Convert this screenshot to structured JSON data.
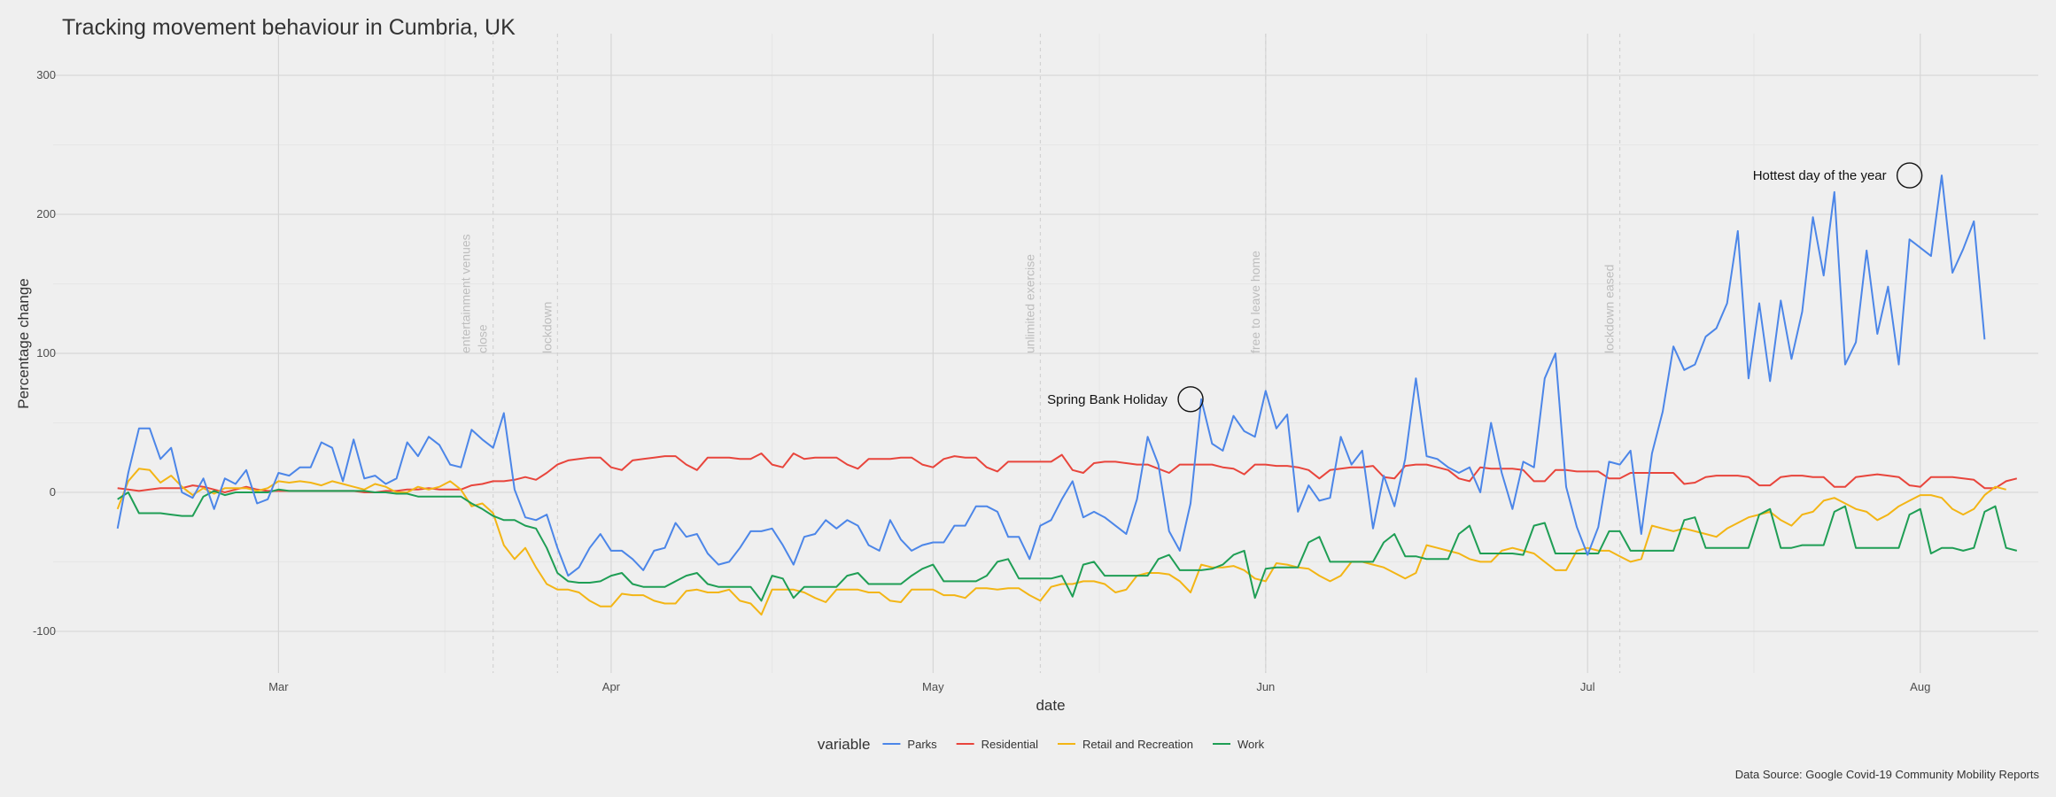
{
  "chart_data": {
    "type": "line",
    "title": "Tracking movement behaviour in Cumbria, UK",
    "xlabel": "date",
    "ylabel": "Percentage change",
    "caption": "Data Source: Google Covid-19 Community Mobility Reports",
    "legend_title": "variable",
    "legend_position": "bottom",
    "grid": true,
    "x_range": [
      "2020-02-09",
      "2020-08-12"
    ],
    "ylim": [
      -130,
      330
    ],
    "x_ticks": [
      {
        "date": "2020-03-01",
        "label": "Mar"
      },
      {
        "date": "2020-04-01",
        "label": "Apr"
      },
      {
        "date": "2020-05-01",
        "label": "May"
      },
      {
        "date": "2020-06-01",
        "label": "Jun"
      },
      {
        "date": "2020-07-01",
        "label": "Jul"
      },
      {
        "date": "2020-08-01",
        "label": "Aug"
      }
    ],
    "y_ticks": [
      -100,
      0,
      100,
      200,
      300
    ],
    "events": [
      {
        "date": "2020-03-21",
        "label": "entertainment venues close"
      },
      {
        "date": "2020-03-27",
        "label": "lockdown"
      },
      {
        "date": "2020-05-11",
        "label": "unlimited exercise"
      },
      {
        "date": "2020-06-01",
        "label": "free to leave home"
      },
      {
        "date": "2020-07-04",
        "label": "lockdown eased"
      }
    ],
    "annotations": [
      {
        "date": "2020-05-25",
        "value": 67,
        "label": "Spring Bank Holiday"
      },
      {
        "date": "2020-07-31",
        "value": 228,
        "label": "Hottest day of the year"
      }
    ],
    "series": [
      {
        "name": "Parks",
        "color": "#4c86e8",
        "start_date": "2020-02-15",
        "values": [
          -26,
          14,
          46,
          46,
          24,
          32,
          0,
          -4,
          10,
          -12,
          10,
          6,
          16,
          -8,
          -5,
          14,
          12,
          18,
          18,
          36,
          32,
          8,
          38,
          10,
          12,
          6,
          10,
          36,
          26,
          40,
          34,
          20,
          18,
          45,
          38,
          32,
          57,
          2,
          -18,
          -20,
          -16,
          -40,
          -60,
          -54,
          -40,
          -30,
          -42,
          -42,
          -48,
          -56,
          -42,
          -40,
          -22,
          -32,
          -30,
          -44,
          -52,
          -50,
          -40,
          -28,
          -28,
          -26,
          -38,
          -52,
          -32,
          -30,
          -20,
          -26,
          -20,
          -24,
          -38,
          -42,
          -20,
          -34,
          -42,
          -38,
          -36,
          -36,
          -24,
          -24,
          -10,
          -10,
          -14,
          -32,
          -32,
          -48,
          -24,
          -20,
          -5,
          8,
          -18,
          -14,
          -18,
          -24,
          -30,
          -5,
          40,
          20,
          -28,
          -42,
          -8,
          67,
          35,
          30,
          55,
          44,
          40,
          73,
          46,
          56,
          -14,
          5,
          -6,
          -4,
          40,
          20,
          30,
          -26,
          12,
          -10,
          24,
          82,
          26,
          24,
          18,
          14,
          18,
          0,
          50,
          14,
          -12,
          22,
          18,
          82,
          100,
          4,
          -25,
          -45,
          -25,
          22,
          20,
          30,
          -30,
          28,
          58,
          105,
          88,
          92,
          112,
          118,
          136,
          188,
          82,
          136,
          80,
          138,
          96,
          130,
          198,
          156,
          216,
          92,
          108,
          174,
          114,
          148,
          92,
          182,
          176,
          170,
          228,
          158,
          175,
          195,
          110
        ]
      },
      {
        "name": "Residential",
        "color": "#e8453c",
        "start_date": "2020-02-15",
        "values": [
          3,
          2,
          1,
          2,
          3,
          3,
          3,
          5,
          4,
          2,
          0,
          2,
          4,
          2,
          1,
          1,
          1,
          1,
          1,
          1,
          1,
          1,
          1,
          0,
          0,
          1,
          1,
          2,
          2,
          3,
          2,
          2,
          2,
          5,
          6,
          8,
          8,
          9,
          11,
          9,
          14,
          20,
          23,
          24,
          25,
          25,
          18,
          16,
          23,
          24,
          25,
          26,
          26,
          20,
          16,
          25,
          25,
          25,
          24,
          24,
          28,
          20,
          18,
          28,
          24,
          25,
          25,
          25,
          20,
          17,
          24,
          24,
          24,
          25,
          25,
          20,
          18,
          24,
          26,
          25,
          25,
          18,
          15,
          22,
          22,
          22,
          22,
          22,
          27,
          16,
          14,
          21,
          22,
          22,
          21,
          20,
          20,
          17,
          14,
          20,
          20,
          20,
          20,
          18,
          17,
          13,
          20,
          20,
          19,
          19,
          18,
          16,
          10,
          16,
          17,
          18,
          18,
          19,
          11,
          10,
          19,
          20,
          20,
          18,
          16,
          10,
          8,
          18,
          17,
          17,
          17,
          16,
          8,
          8,
          16,
          16,
          15,
          15,
          15,
          10,
          10,
          14,
          14,
          14,
          14,
          14,
          6,
          7,
          11,
          12,
          12,
          12,
          11,
          5,
          5,
          11,
          12,
          12,
          11,
          11,
          4,
          4,
          11,
          12,
          13,
          12,
          11,
          5,
          4,
          11,
          11,
          11,
          10,
          9,
          3,
          3,
          8,
          10
        ]
      },
      {
        "name": "Retail and Recreation",
        "color": "#f3b515",
        "start_date": "2020-02-15",
        "values": [
          -12,
          8,
          17,
          16,
          7,
          12,
          4,
          -2,
          3,
          -1,
          3,
          3,
          3,
          1,
          3,
          8,
          7,
          8,
          7,
          5,
          8,
          6,
          4,
          2,
          6,
          4,
          0,
          0,
          4,
          2,
          4,
          8,
          2,
          -10,
          -8,
          -15,
          -38,
          -48,
          -40,
          -54,
          -66,
          -70,
          -70,
          -72,
          -78,
          -82,
          -82,
          -73,
          -74,
          -74,
          -78,
          -80,
          -80,
          -71,
          -70,
          -72,
          -72,
          -70,
          -78,
          -80,
          -88,
          -70,
          -70,
          -70,
          -72,
          -76,
          -79,
          -70,
          -70,
          -70,
          -72,
          -72,
          -78,
          -79,
          -70,
          -70,
          -70,
          -74,
          -74,
          -76,
          -69,
          -69,
          -70,
          -69,
          -69,
          -74,
          -78,
          -68,
          -66,
          -66,
          -64,
          -64,
          -66,
          -72,
          -70,
          -60,
          -58,
          -58,
          -59,
          -64,
          -72,
          -52,
          -54,
          -54,
          -53,
          -56,
          -62,
          -64,
          -51,
          -52,
          -54,
          -55,
          -60,
          -64,
          -60,
          -50,
          -50,
          -52,
          -54,
          -58,
          -62,
          -58,
          -38,
          -40,
          -42,
          -44,
          -48,
          -50,
          -50,
          -42,
          -40,
          -42,
          -44,
          -50,
          -56,
          -56,
          -42,
          -40,
          -42,
          -42,
          -46,
          -50,
          -48,
          -24,
          -26,
          -28,
          -26,
          -28,
          -30,
          -32,
          -26,
          -22,
          -18,
          -16,
          -14,
          -20,
          -24,
          -16,
          -14,
          -6,
          -4,
          -8,
          -12,
          -14,
          -20,
          -16,
          -10,
          -6,
          -2,
          -2,
          -4,
          -12,
          -16,
          -12,
          -2,
          4,
          2
        ]
      },
      {
        "name": "Work",
        "color": "#1f9e55",
        "start_date": "2020-02-15",
        "values": [
          -5,
          0,
          -15,
          -15,
          -15,
          -16,
          -17,
          -17,
          -3,
          1,
          -2,
          0,
          0,
          0,
          0,
          2,
          1,
          1,
          1,
          1,
          1,
          1,
          1,
          1,
          0,
          0,
          -1,
          -1,
          -3,
          -3,
          -3,
          -3,
          -3,
          -8,
          -12,
          -17,
          -20,
          -20,
          -24,
          -26,
          -40,
          -58,
          -64,
          -65,
          -65,
          -64,
          -60,
          -58,
          -66,
          -68,
          -68,
          -68,
          -64,
          -60,
          -58,
          -66,
          -68,
          -68,
          -68,
          -68,
          -78,
          -60,
          -62,
          -76,
          -68,
          -68,
          -68,
          -68,
          -60,
          -58,
          -66,
          -66,
          -66,
          -66,
          -60,
          -55,
          -52,
          -64,
          -64,
          -64,
          -64,
          -60,
          -50,
          -48,
          -62,
          -62,
          -62,
          -62,
          -60,
          -75,
          -52,
          -50,
          -60,
          -60,
          -60,
          -60,
          -60,
          -48,
          -45,
          -56,
          -56,
          -56,
          -55,
          -52,
          -45,
          -42,
          -76,
          -55,
          -54,
          -54,
          -54,
          -36,
          -32,
          -50,
          -50,
          -50,
          -50,
          -50,
          -36,
          -30,
          -46,
          -46,
          -48,
          -48,
          -48,
          -30,
          -24,
          -44,
          -44,
          -44,
          -44,
          -45,
          -24,
          -22,
          -44,
          -44,
          -44,
          -44,
          -44,
          -28,
          -28,
          -42,
          -42,
          -42,
          -42,
          -42,
          -20,
          -18,
          -40,
          -40,
          -40,
          -40,
          -40,
          -16,
          -12,
          -40,
          -40,
          -38,
          -38,
          -38,
          -14,
          -10,
          -40,
          -40,
          -40,
          -40,
          -40,
          -16,
          -12,
          -44,
          -40,
          -40,
          -42,
          -40,
          -14,
          -10,
          -40,
          -42
        ]
      }
    ]
  }
}
